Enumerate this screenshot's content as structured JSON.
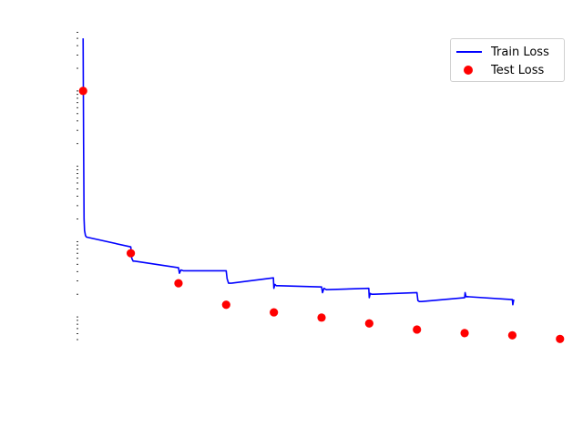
{
  "chart_data": {
    "type": "line",
    "title": "",
    "xlabel": "",
    "ylabel": "",
    "y_scale": "log",
    "grid": false,
    "axes_visible": false,
    "legend_position": "top-right",
    "xlim": [
      -0.1,
      10.1
    ],
    "ylim": [
      5e-05,
      0.7
    ],
    "colors": {
      "train": "#0000ff",
      "test": "#ff0000"
    },
    "series": [
      {
        "name": "Train Loss",
        "style": "line",
        "color": "#0000ff",
        "x": [
          0,
          0.01,
          0.02,
          0.03,
          0.05,
          0.07,
          1.0,
          1.02,
          1.05,
          1.08,
          2.0,
          2.02,
          2.05,
          2.1,
          3.0,
          3.02,
          3.05,
          3.1,
          3.99,
          4.0,
          4.02,
          4.05,
          4.1,
          5.0,
          5.02,
          5.05,
          5.1,
          5.99,
          6.0,
          6.02,
          6.05,
          6.1,
          7.0,
          7.02,
          7.05,
          7.1,
          8.0,
          8.01,
          8.03,
          8.05,
          8.1,
          9.0,
          9.01,
          9.03
        ],
        "y": [
          0.5,
          0.02,
          0.002,
          0.0014,
          0.0012,
          0.00115,
          0.00085,
          0.0006,
          0.00055,
          0.00055,
          0.00045,
          0.00038,
          0.00042,
          0.00041,
          0.00041,
          0.00032,
          0.00028,
          0.00028,
          0.00033,
          0.00024,
          0.00027,
          0.00026,
          0.00026,
          0.00025,
          0.00021,
          0.00024,
          0.00023,
          0.00024,
          0.00018,
          0.000205,
          0.0002,
          0.0002,
          0.00021,
          0.000165,
          0.00016,
          0.00016,
          0.00018,
          0.00021,
          0.000185,
          0.000186,
          0.000185,
          0.00017,
          0.000145,
          0.00017
        ]
      },
      {
        "name": "Test Loss",
        "style": "scatter",
        "color": "#ff0000",
        "x": [
          0,
          1,
          2,
          3,
          4,
          5,
          6,
          7,
          8,
          9,
          10
        ],
        "y": [
          0.1,
          0.0007,
          0.00028,
          0.000145,
          0.000115,
          9.8e-05,
          8.2e-05,
          6.8e-05,
          6.1e-05,
          5.7e-05,
          5.1e-05
        ]
      }
    ]
  }
}
